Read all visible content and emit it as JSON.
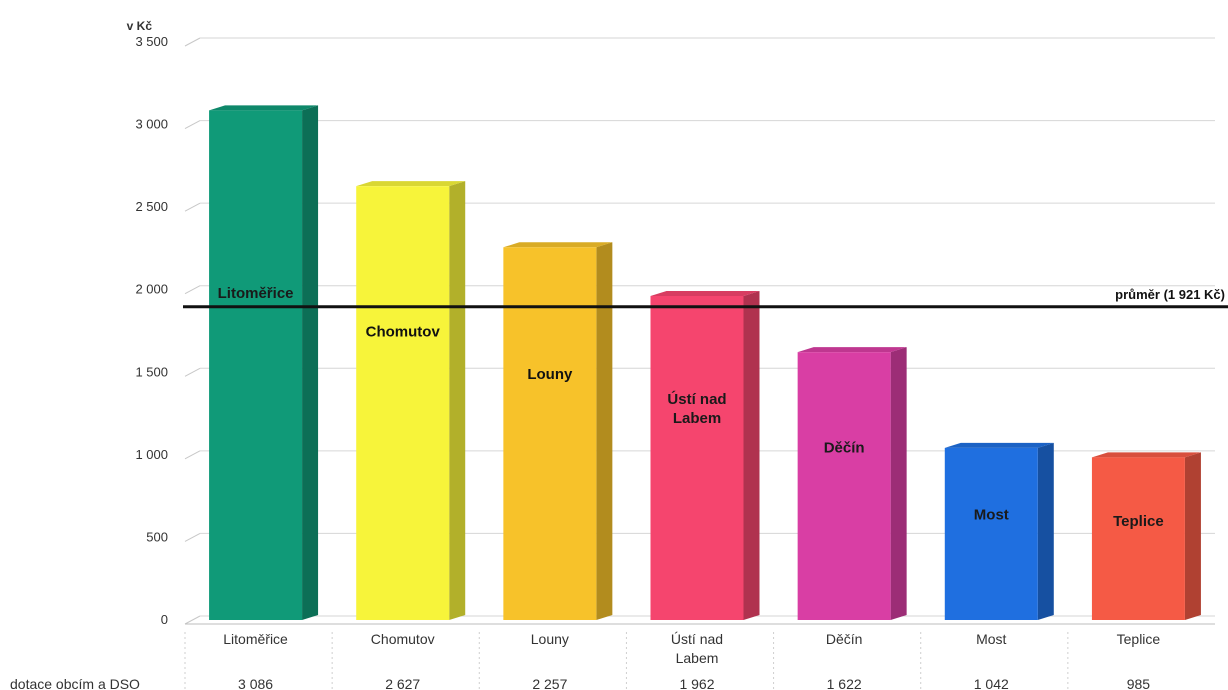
{
  "chart_data": {
    "type": "bar",
    "unit_label": "v Kč",
    "yticks": [
      0,
      500,
      1000,
      1500,
      2000,
      2500,
      3000,
      3500
    ],
    "ytick_labels": [
      "0",
      "500",
      "1 000",
      "1 500",
      "2 000",
      "2 500",
      "3 000",
      "3 500"
    ],
    "ylim": [
      0,
      3500
    ],
    "grid": true,
    "categories": [
      "Litoměřice",
      "Chomutov",
      "Louny",
      "Ústí nad Labem",
      "Děčín",
      "Most",
      "Teplice"
    ],
    "category_labels": [
      [
        "Litoměřice"
      ],
      [
        "Chomutov"
      ],
      [
        "Louny"
      ],
      [
        "Ústí nad",
        "Labem"
      ],
      [
        "Děčín"
      ],
      [
        "Most"
      ],
      [
        "Teplice"
      ]
    ],
    "bar_labels": [
      [
        "Litoměřice"
      ],
      [
        "Chomutov"
      ],
      [
        "Louny"
      ],
      [
        "Ústí nad",
        "Labem"
      ],
      [
        "Děčín"
      ],
      [
        "Most"
      ],
      [
        "Teplice"
      ]
    ],
    "series": [
      {
        "name": "dotace obcím a DSO",
        "values": [
          3086,
          2627,
          2257,
          1962,
          1622,
          1042,
          985
        ],
        "value_labels": [
          "3 086",
          "2 627",
          "2 257",
          "1 962",
          "1 622",
          "1 042",
          "985"
        ]
      }
    ],
    "colors": [
      "#109a78",
      "#f7f43a",
      "#f7c22a",
      "#f5456e",
      "#d93ea4",
      "#1f6fe0",
      "#f55a45"
    ],
    "reference_line": {
      "value": 1921,
      "label": "průměr (1 921 Kč)"
    }
  }
}
